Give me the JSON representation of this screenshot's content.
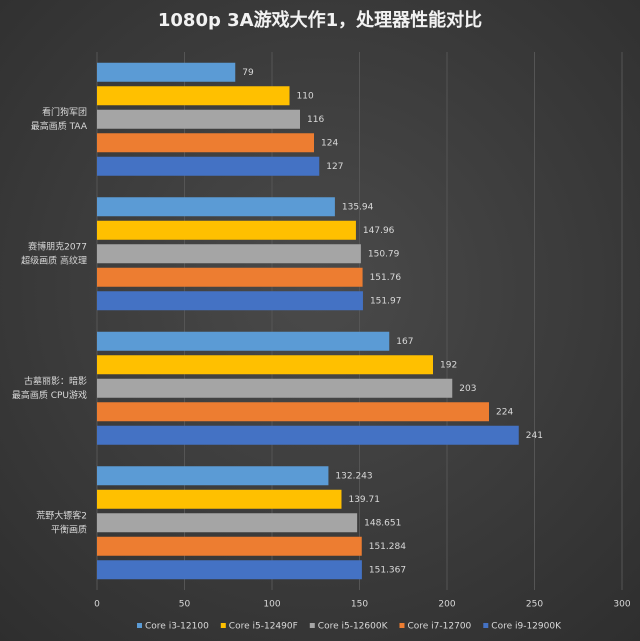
{
  "chart_data": {
    "type": "bar",
    "orientation": "horizontal",
    "title": "1080p 3A游戏大作1，处理器性能对比",
    "categories": [
      [
        "看门狗军团",
        "最高画质 TAA"
      ],
      [
        "赛博朋克2077",
        "超级画质 高纹理"
      ],
      [
        "古墓丽影：暗影",
        "最高画质 CPU游戏"
      ],
      [
        "荒野大镖客2",
        "平衡画质"
      ]
    ],
    "series": [
      {
        "name": "Core i3-12100",
        "color": "#5b9bd5",
        "values": [
          79,
          135.94,
          167,
          132.243
        ]
      },
      {
        "name": "Core i5-12490F",
        "color": "#ffc000",
        "values": [
          110,
          147.96,
          192,
          139.71
        ]
      },
      {
        "name": "Core i5-12600K",
        "color": "#a5a5a5",
        "values": [
          116,
          150.79,
          203,
          148.651
        ]
      },
      {
        "name": "Core i7-12700",
        "color": "#ed7d31",
        "values": [
          124,
          151.76,
          224,
          151.284
        ]
      },
      {
        "name": "Core i9-12900K",
        "color": "#4472c4",
        "values": [
          127,
          151.97,
          241,
          151.367
        ]
      }
    ],
    "xlim": [
      0,
      300
    ],
    "xticks": [
      0,
      50,
      100,
      150,
      200,
      250,
      300
    ],
    "grid": true,
    "legend": "bottom"
  }
}
